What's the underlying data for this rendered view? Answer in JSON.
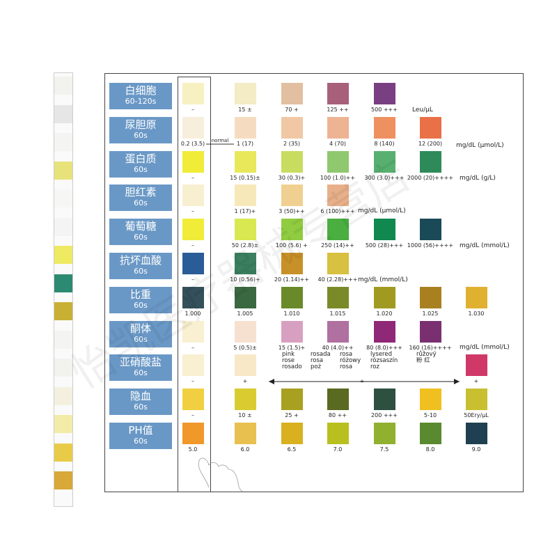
{
  "watermark": "怡凯医疗器械专营店",
  "strip": {
    "pads": [
      "#f2f2ee",
      "#e6e6e6",
      "#f4f4f2",
      "#e8e27a",
      "#f6f6f4",
      "#f4f4f4",
      "#eeea62",
      "#2c8a72",
      "#c8b034",
      "#f4f4f2",
      "#f2f2ee",
      "#f4f0e0",
      "#f2eca8",
      "#e8cc48",
      "#d8a838"
    ]
  },
  "normal": "normal",
  "rows": [
    {
      "name": "白细胞",
      "time": "60-120s",
      "unit": "Leu/μL",
      "swatches": [
        {
          "color": "#f7f0c0",
          "label": "–"
        },
        {
          "color": "#f3ecc5",
          "label": "15 ±"
        },
        {
          "color": "#e2bfa0",
          "label": "70 +"
        },
        {
          "color": "#a8607a",
          "label": "125 ++"
        },
        {
          "color": "#7a3e82",
          "label": "500 +++"
        }
      ]
    },
    {
      "name": "尿胆原",
      "time": "60s",
      "unit": "mg/dL (μmol/L)",
      "swatches": [
        {
          "color": "#f8eedc",
          "label": "0.2 (3.5)"
        },
        {
          "color": "#f5dcc0",
          "label": "1 (17)"
        },
        {
          "color": "#f0c8a5",
          "label": "2 (35)"
        },
        {
          "color": "#eeb393",
          "label": "4 (70)"
        },
        {
          "color": "#ee9060",
          "label": "8 (140)"
        },
        {
          "color": "#ea7048",
          "label": "12 (200)"
        }
      ]
    },
    {
      "name": "蛋白质",
      "time": "60s",
      "unit": "mg/dL (g/L)",
      "swatches": [
        {
          "color": "#f0ec38",
          "label": "–"
        },
        {
          "color": "#e8e85a",
          "label": "15 (0.15)±"
        },
        {
          "color": "#c8dc60",
          "label": "30 (0.3)+"
        },
        {
          "color": "#90c870",
          "label": "100 (1.0)++"
        },
        {
          "color": "#58b070",
          "label": "300 (3.0)+++"
        },
        {
          "color": "#2f8a5a",
          "label": "2000 (20)++++"
        }
      ]
    },
    {
      "name": "胆红素",
      "time": "60s",
      "unit": "mg/dL (μmol/L)",
      "swatches": [
        {
          "color": "#f8eed0",
          "label": "–"
        },
        {
          "color": "#f6e8b8",
          "label": "1 (17)+"
        },
        {
          "color": "#f0d090",
          "label": "3 (50)++"
        },
        {
          "color": "#e8b08a",
          "label": "6 (100)+++"
        }
      ]
    },
    {
      "name": "葡萄糖",
      "time": "60s",
      "unit": "mg/dL (mmol/L)",
      "swatches": [
        {
          "color": "#f0ec38",
          "label": "–"
        },
        {
          "color": "#d8e850",
          "label": "50 (2.8)±"
        },
        {
          "color": "#90cc40",
          "label": "100 (5.6) +"
        },
        {
          "color": "#4aae40",
          "label": "250 (14)++"
        },
        {
          "color": "#108850",
          "label": "500 (28)+++"
        },
        {
          "color": "#1a4a58",
          "label": "1000 (56)++++"
        }
      ]
    },
    {
      "name": "抗坏血酸",
      "time": "60s",
      "unit": "mg/dL (mmol/L)",
      "swatches": [
        {
          "color": "#2a5c98",
          "label": "–"
        },
        {
          "color": "#3a8060",
          "label": "10 (0.56)+"
        },
        {
          "color": "#c89028",
          "label": "20 (1.14)++"
        },
        {
          "color": "#d8c040",
          "label": "40 (2.28)+++"
        }
      ]
    },
    {
      "name": "比重",
      "time": "60s",
      "swatches": [
        {
          "color": "#34505a",
          "label": "1.000"
        },
        {
          "color": "#3a6840",
          "label": "1.005"
        },
        {
          "color": "#6a8a2a",
          "label": "1.010"
        },
        {
          "color": "#7a8a28",
          "label": "1.015"
        },
        {
          "color": "#a09a20",
          "label": "1.020"
        },
        {
          "color": "#a88020",
          "label": "1.025"
        },
        {
          "color": "#e0b030",
          "label": "1.030"
        }
      ]
    },
    {
      "name": "酮体",
      "time": "60s",
      "unit": "mg/dL (mmol/L)",
      "swatches": [
        {
          "color": "#f8f0d0",
          "label": "–"
        },
        {
          "color": "#f6e0d0",
          "label": "5 (0.5)±"
        },
        {
          "color": "#d8a0c0",
          "label": "15 (1.5)+"
        },
        {
          "color": "#b070a0",
          "label": "40 (4.0)++"
        },
        {
          "color": "#902878",
          "label": "80 (8.0)+++"
        },
        {
          "color": "#7a3070",
          "label": "160 (16)++++"
        }
      ]
    },
    {
      "name": "亚硝酸盐",
      "time": "60s",
      "swatches": [
        {
          "color": "#f8f0d0",
          "label": "–"
        },
        {
          "color": "#f8e8c8",
          "label": "+"
        },
        null,
        null,
        null,
        null,
        {
          "color": "#d03868",
          "label": "+"
        }
      ],
      "notes": [
        [
          "pink",
          "rose",
          "rosado"
        ],
        [
          "rosada",
          "rosa",
          "poż"
        ],
        [
          "rosa",
          "różowy",
          "rosa"
        ],
        [
          "lysered",
          "rózsaszín",
          "roz"
        ],
        [
          "růžový",
          "粉 红"
        ]
      ],
      "range": "+"
    },
    {
      "name": "隐血",
      "time": "60s",
      "swatches": [
        {
          "color": "#f0d040",
          "label": "–"
        },
        {
          "color": "#d8cc30",
          "label": "10 ±"
        },
        {
          "color": "#a8a020",
          "label": "25 +"
        },
        {
          "color": "#5a6a20",
          "label": "80 ++"
        },
        {
          "color": "#2e5040",
          "label": "200 +++"
        },
        {
          "color": "#f0c020",
          "label": "5-10"
        },
        {
          "color": "#c8c030",
          "label": "50Ery/μL"
        }
      ]
    },
    {
      "name": "PH值",
      "time": "60s",
      "swatches": [
        {
          "color": "#f0982a",
          "label": "5.0"
        },
        {
          "color": "#e8c050",
          "label": "6.0"
        },
        {
          "color": "#d8b020",
          "label": "6.5"
        },
        {
          "color": "#b8c020",
          "label": "7.0"
        },
        {
          "color": "#90b030",
          "label": "7.5"
        },
        {
          "color": "#5a8a30",
          "label": "8.0"
        },
        {
          "color": "#1e4050",
          "label": "9.0"
        }
      ]
    }
  ]
}
